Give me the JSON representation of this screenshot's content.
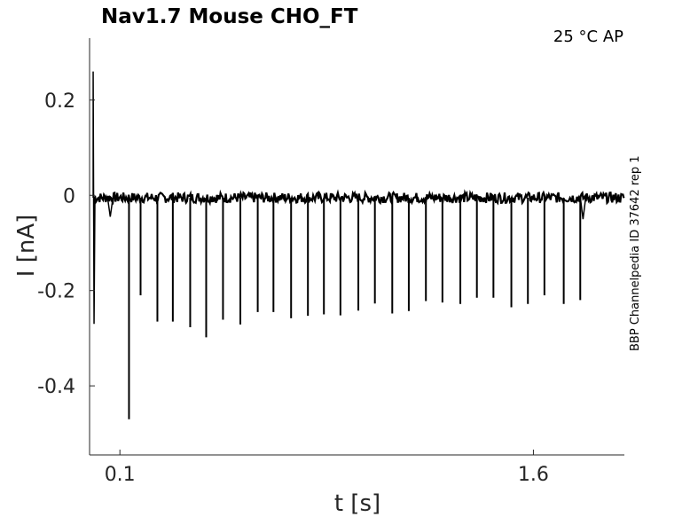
{
  "chart_data": {
    "type": "line",
    "title": "Nav1.7  Mouse  CHO_FT",
    "annotation": "25 °C  AP",
    "side_label": "BBP Channelpedia ID 37642 rep 1",
    "xlabel": "t [s]",
    "ylabel": "I [nA]",
    "xlim": [
      -0.01,
      1.93
    ],
    "ylim": [
      -0.545,
      0.33
    ],
    "x_ticks": [
      {
        "value": 0.1,
        "label": "0.1"
      },
      {
        "value": 1.6,
        "label": "1.6"
      }
    ],
    "y_ticks": [
      {
        "value": 0.2,
        "label": "0.2"
      },
      {
        "value": 0,
        "label": "0"
      },
      {
        "value": -0.2,
        "label": "-0.2"
      },
      {
        "value": -0.4,
        "label": "-0.4"
      }
    ],
    "grid": false,
    "series": [
      {
        "baseline": -0.005,
        "onset_artifact": {
          "x": 0.003,
          "y": 0.26
        },
        "small_dips": [
          {
            "x": 0.065,
            "y": -0.045
          },
          {
            "x": 1.78,
            "y": -0.05
          }
        ],
        "spikes": [
          {
            "x": 0.133,
            "y": -0.47
          },
          {
            "x": 0.175,
            "y": -0.21
          },
          {
            "x": 0.236,
            "y": -0.265
          },
          {
            "x": 0.292,
            "y": -0.265
          },
          {
            "x": 0.355,
            "y": -0.277
          },
          {
            "x": 0.413,
            "y": -0.298
          },
          {
            "x": 0.474,
            "y": -0.261
          },
          {
            "x": 0.537,
            "y": -0.271
          },
          {
            "x": 0.6,
            "y": -0.245
          },
          {
            "x": 0.657,
            "y": -0.245
          },
          {
            "x": 0.721,
            "y": -0.258
          },
          {
            "x": 0.782,
            "y": -0.253
          },
          {
            "x": 0.84,
            "y": -0.25
          },
          {
            "x": 0.9,
            "y": -0.252
          },
          {
            "x": 0.965,
            "y": -0.242
          },
          {
            "x": 1.025,
            "y": -0.227
          },
          {
            "x": 1.088,
            "y": -0.248
          },
          {
            "x": 1.148,
            "y": -0.243
          },
          {
            "x": 1.21,
            "y": -0.222
          },
          {
            "x": 1.27,
            "y": -0.225
          },
          {
            "x": 1.335,
            "y": -0.228
          },
          {
            "x": 1.395,
            "y": -0.215
          },
          {
            "x": 1.455,
            "y": -0.215
          },
          {
            "x": 1.52,
            "y": -0.235
          },
          {
            "x": 1.58,
            "y": -0.228
          },
          {
            "x": 1.64,
            "y": -0.21
          },
          {
            "x": 1.71,
            "y": -0.228
          },
          {
            "x": 1.77,
            "y": -0.22
          }
        ]
      }
    ]
  }
}
